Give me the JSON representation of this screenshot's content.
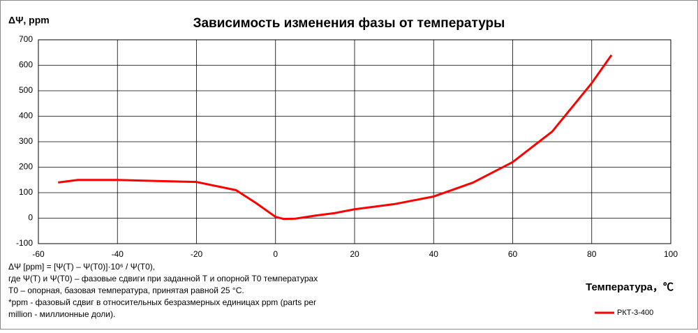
{
  "chart_data": {
    "type": "line",
    "title": "Зависимость изменения фазы от температуры",
    "ylabel": "ΔΨ, ppm",
    "xlabel": "Температура，℃",
    "x": [
      -55,
      -50,
      -40,
      -30,
      -20,
      -10,
      -5,
      0,
      2,
      5,
      10,
      15,
      20,
      30,
      40,
      50,
      60,
      70,
      80,
      85
    ],
    "series": [
      {
        "name": "РКТ-3-400",
        "color": "#ff0000",
        "values": [
          140,
          150,
          150,
          146,
          142,
          110,
          60,
          5,
          -3,
          -2,
          10,
          20,
          35,
          55,
          85,
          140,
          220,
          340,
          530,
          640
        ]
      }
    ],
    "xlim": [
      -60,
      100
    ],
    "xticks": [
      -60,
      -40,
      -20,
      0,
      20,
      40,
      60,
      80,
      100
    ],
    "ylim": [
      -100,
      700
    ],
    "yticks": [
      -100,
      0,
      100,
      200,
      300,
      400,
      500,
      600,
      700
    ],
    "grid": true,
    "legend": "bottom-right",
    "notes": [
      "ΔΨ [ppm] = [Ψ(T) – Ψ(T0)]·10⁶ / Ψ(T0),",
      "где Ψ(T) и Ψ(T0) – фазовые сдвиги при заданной Т и опорной Т0 температурах",
      "Т0 – опорная, базовая температура, принятая равной 25 °С.",
      "*ppm - фазовый сдвиг в относительных безразмерных единицах ppm (parts per",
      "million - миллионные доли)."
    ]
  }
}
